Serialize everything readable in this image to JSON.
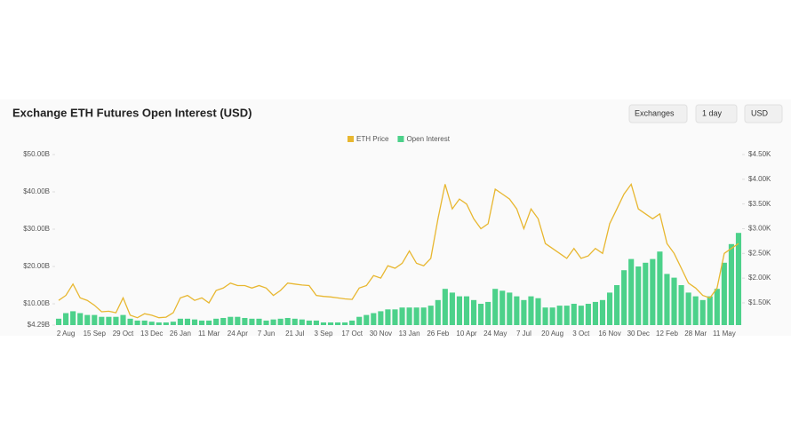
{
  "ui": {
    "controls": [
      "Exchanges",
      "1 day",
      "USD"
    ]
  },
  "chart_data": {
    "type": "bar-line",
    "title": "Exchange ETH Futures Open Interest (USD)",
    "categories": [
      null,
      "2 Aug",
      null,
      null,
      null,
      "15 Sep",
      null,
      null,
      null,
      "29 Oct",
      null,
      null,
      null,
      "13 Dec",
      null,
      null,
      null,
      "26 Jan",
      null,
      null,
      null,
      "11 Mar",
      null,
      null,
      null,
      "24 Apr",
      null,
      null,
      null,
      "7 Jun",
      null,
      null,
      null,
      "21 Jul",
      null,
      null,
      null,
      "3 Sep",
      null,
      null,
      null,
      "17 Oct",
      null,
      null,
      null,
      "30 Nov",
      null,
      null,
      null,
      "13 Jan",
      null,
      null,
      null,
      "26 Feb",
      null,
      null,
      null,
      "10 Apr",
      null,
      null,
      null,
      "24 May",
      null,
      null,
      null,
      "7 Jul",
      null,
      null,
      null,
      "20 Aug",
      null,
      null,
      null,
      "3 Oct",
      null,
      null,
      null,
      "16 Nov",
      null,
      null,
      null,
      "30 Dec",
      null,
      null,
      null,
      "12 Feb",
      null,
      null,
      null,
      "28 Mar",
      null,
      null,
      null,
      "11 May",
      null,
      null
    ],
    "series": [
      {
        "name": "ETH Price",
        "color": "#e8b730",
        "axis": "y2",
        "kind": "line",
        "values": [
          1550,
          1650,
          1880,
          1600,
          1550,
          1450,
          1320,
          1330,
          1300,
          1600,
          1250,
          1200,
          1280,
          1250,
          1200,
          1210,
          1300,
          1600,
          1650,
          1550,
          1600,
          1500,
          1750,
          1800,
          1900,
          1850,
          1850,
          1800,
          1850,
          1800,
          1650,
          1750,
          1900,
          1880,
          1860,
          1850,
          1650,
          1630,
          1620,
          1600,
          1580,
          1570,
          1800,
          1850,
          2050,
          2000,
          2250,
          2200,
          2300,
          2550,
          2300,
          2250,
          2400,
          3200,
          3900,
          3400,
          3600,
          3500,
          3200,
          3000,
          3100,
          3800,
          3700,
          3600,
          3400,
          3000,
          3400,
          3200,
          2700,
          2600,
          2500,
          2400,
          2600,
          2400,
          2450,
          2600,
          2500,
          3100,
          3400,
          3700,
          3900,
          3400,
          3300,
          3200,
          3300,
          2700,
          2500,
          2200,
          1900,
          1800,
          1650,
          1600,
          1800,
          2500,
          2600,
          2700
        ]
      },
      {
        "name": "Open Interest",
        "color": "#4cd18a",
        "kind": "bar",
        "values": [
          6,
          7.5,
          8,
          7.5,
          7,
          7,
          6.5,
          6.5,
          6.5,
          7,
          6,
          5.5,
          5.5,
          5.2,
          5,
          5,
          5.2,
          6,
          6,
          5.8,
          5.5,
          5.5,
          6,
          6.2,
          6.5,
          6.5,
          6.2,
          6,
          6,
          5.5,
          5.8,
          6,
          6.2,
          6,
          5.8,
          5.5,
          5.5,
          5,
          5,
          5,
          5,
          5.5,
          6.5,
          7,
          7.5,
          8,
          8.5,
          8.5,
          9,
          9,
          9,
          9,
          9.5,
          11,
          14,
          13,
          12,
          12,
          11,
          10,
          10.5,
          14,
          13.5,
          13,
          12,
          11,
          12,
          11.5,
          9,
          9,
          9.5,
          9.5,
          10,
          9.5,
          10,
          10.5,
          11,
          13,
          15,
          19,
          22,
          20,
          21,
          22,
          24,
          18,
          17,
          15,
          13,
          12,
          11,
          12,
          14,
          21,
          26,
          29
        ]
      }
    ],
    "ylim": [
      4.29,
      50
    ],
    "yticks": [
      {
        "value": 4.29,
        "label": "$4.29B"
      },
      {
        "value": 10,
        "label": "$10.00B"
      },
      {
        "value": 20,
        "label": "$20.00B"
      },
      {
        "value": 30,
        "label": "$30.00B"
      },
      {
        "value": 40,
        "label": "$40.00B"
      },
      {
        "value": 50,
        "label": "$50.00B"
      }
    ],
    "y2lim": [
      1050,
      4500
    ],
    "y2ticks": [
      {
        "value": 1500,
        "label": "$1.50K"
      },
      {
        "value": 2000,
        "label": "$2.00K"
      },
      {
        "value": 2500,
        "label": "$2.50K"
      },
      {
        "value": 3000,
        "label": "$3.00K"
      },
      {
        "value": 3500,
        "label": "$3.50K"
      },
      {
        "value": 4000,
        "label": "$4.00K"
      },
      {
        "value": 4500,
        "label": "$4.50K"
      }
    ],
    "legend": "top"
  }
}
